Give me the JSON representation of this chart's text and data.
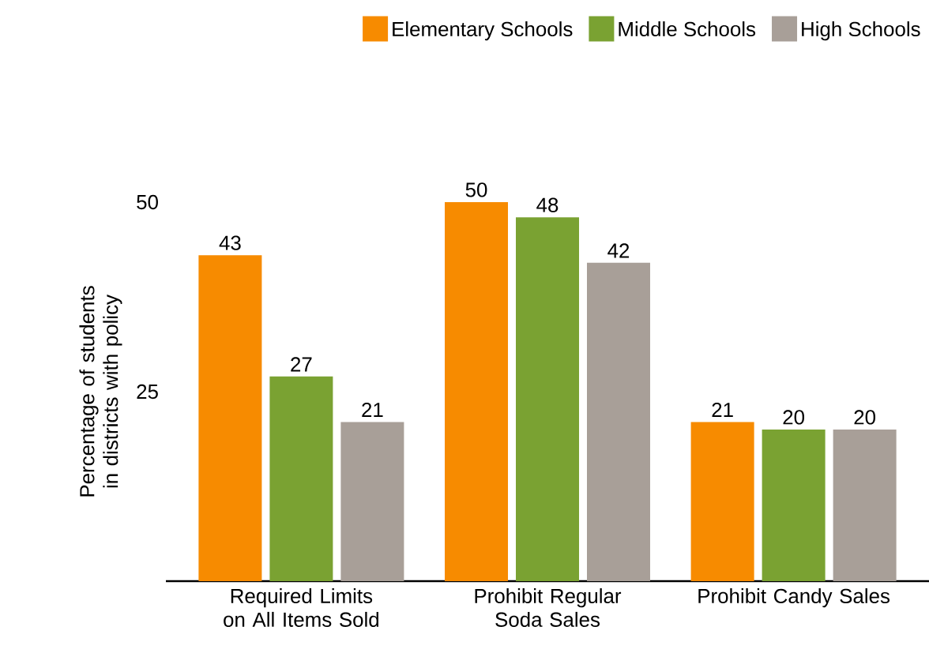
{
  "chart_data": {
    "type": "bar",
    "ylabel": "Percentage of students in districts with policy",
    "categories": [
      "Required Limits on All Items Sold",
      "Prohibit Regular Soda Sales",
      "Prohibit Candy Sales"
    ],
    "series": [
      {
        "name": "Elementary Schools",
        "color": "#f78b00",
        "values": [
          43,
          50,
          21
        ]
      },
      {
        "name": "Middle Schools",
        "color": "#7aa232",
        "values": [
          27,
          48,
          20
        ]
      },
      {
        "name": "High Schools",
        "color": "#a89f98",
        "values": [
          21,
          42,
          20
        ]
      }
    ],
    "ylim": [
      0,
      50
    ],
    "yticks": [
      25,
      50
    ],
    "data_labels": true,
    "legend": "top right",
    "grid": false
  }
}
